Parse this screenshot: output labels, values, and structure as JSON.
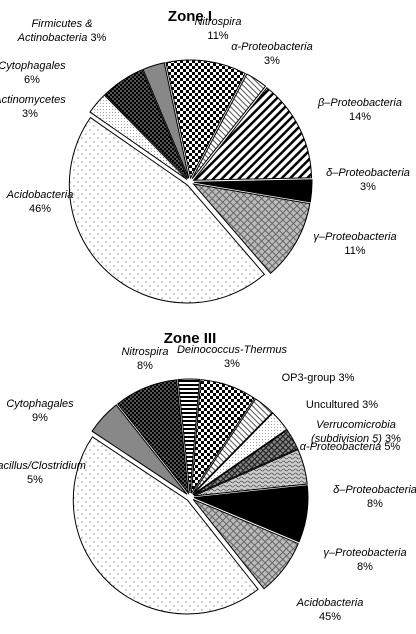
{
  "chart_data": [
    {
      "type": "pie",
      "title": "Zone I",
      "categories": [
        "Nitrospira",
        "α-Proteobacteria",
        "β–Proteobacteria",
        "δ–Proteobacteria",
        "γ–Proteobacteria",
        "Acidobacteria",
        "Actinomycetes",
        "Cytophagales",
        "Firmicutes & Actinobacteria"
      ],
      "values": [
        11,
        3,
        14,
        3,
        11,
        46,
        3,
        6,
        3
      ],
      "value_labels": [
        "11%",
        "3%",
        "14%",
        "3%",
        "11%",
        "46%",
        "3%",
        "6%",
        "3%"
      ]
    },
    {
      "type": "pie",
      "title": "Zone III",
      "categories": [
        "Deinococcus-Thermus",
        "Nitrospira",
        "OP3-group",
        "Uncultured",
        "Verrucomicrobia (subdivision 5)",
        "α-Proteobacteria",
        "δ–Proteobacteria",
        "γ–Proteobacteria",
        "Acidobacteria",
        "Bacillus/Clostridium",
        "Cytophagales"
      ],
      "values": [
        3,
        8,
        3,
        3,
        3,
        5,
        8,
        8,
        45,
        5,
        9
      ],
      "value_labels": [
        "3%",
        "8%",
        "3%",
        "3%",
        "3%",
        "5%",
        "8%",
        "8%",
        "45%",
        "5%",
        "9%"
      ]
    }
  ]
}
